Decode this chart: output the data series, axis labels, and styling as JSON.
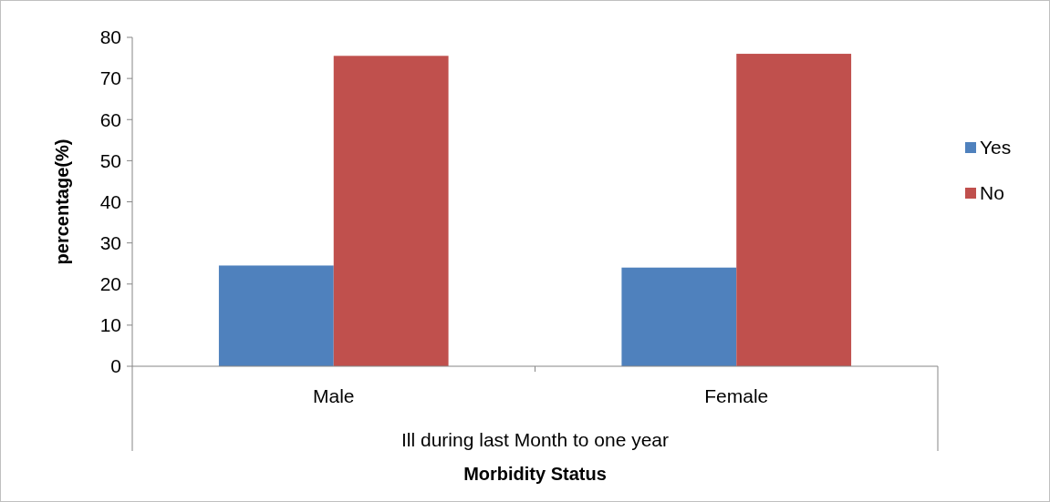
{
  "chart_data": {
    "type": "bar",
    "xlabel": "Morbidity Status",
    "ylabel": "percentage(%)",
    "annotations": [
      "Ill during last Month to one year"
    ],
    "categories": [
      "Male",
      "Female"
    ],
    "series": [
      {
        "name": "Yes",
        "color": "#4f81bd",
        "values": [
          24.5,
          24
        ]
      },
      {
        "name": "No",
        "color": "#c0504d",
        "values": [
          75.5,
          76
        ]
      }
    ],
    "ylim": [
      0,
      80
    ],
    "yticks": [
      0,
      10,
      20,
      30,
      40,
      50,
      60,
      70,
      80
    ],
    "legend": "right",
    "grid": false
  }
}
